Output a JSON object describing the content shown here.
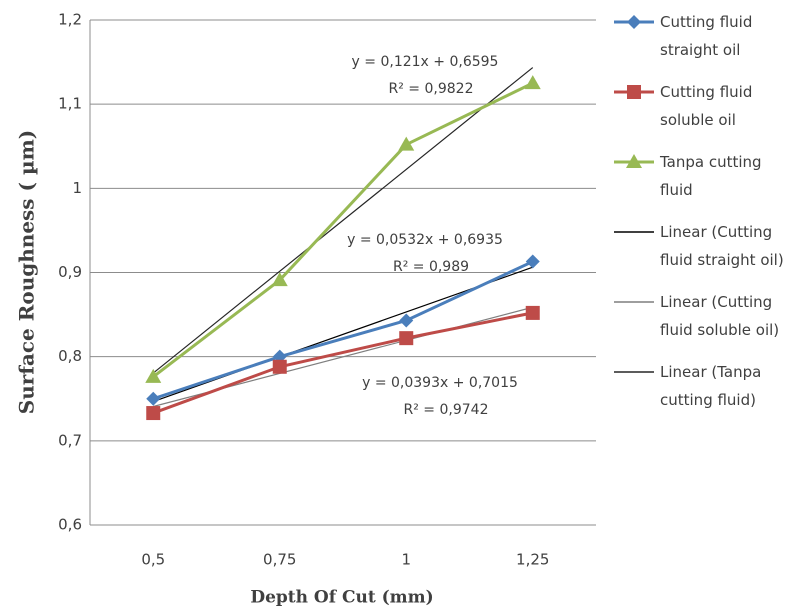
{
  "chart_data": {
    "type": "line",
    "x_label": "Depth Of Cut (mm)",
    "y_label": "Surface Roughness ( µm)",
    "categories": [
      "0,5",
      "0,75",
      "1",
      "1,25"
    ],
    "ylim": [
      0.6,
      1.2
    ],
    "yticks": [
      {
        "value": 0.6,
        "label": "0,6"
      },
      {
        "value": 0.7,
        "label": "0,7"
      },
      {
        "value": 0.8,
        "label": "0,8"
      },
      {
        "value": 0.9,
        "label": "0,9"
      },
      1,
      {
        "value": 1.1,
        "label": "1,1"
      },
      {
        "value": 1.2,
        "label": "1,2"
      }
    ],
    "grid": true,
    "series": [
      {
        "name": "Cutting fluid straight oil",
        "color": "#4a7ebb",
        "marker": "diamond",
        "values": [
          0.75,
          0.8,
          0.843,
          0.913
        ]
      },
      {
        "name": "Cutting fluid soluble oil",
        "color": "#be4b48",
        "marker": "square",
        "values": [
          0.733,
          0.788,
          0.822,
          0.852
        ]
      },
      {
        "name": "Tanpa cutting fluid",
        "color": "#98b954",
        "marker": "triangle",
        "values": [
          0.776,
          0.891,
          1.052,
          1.125
        ]
      }
    ],
    "trendlines": [
      {
        "name": "Linear (Cutting fluid straight oil)",
        "color": "#000000",
        "slope": 0.0532,
        "intercept": 0.6935,
        "equation": "y = 0,0532x + 0,6935",
        "r2": 0.989,
        "r2_label": "R² = 0,989"
      },
      {
        "name": "Linear (Cutting fluid soluble oil)",
        "color": "#7f7f7f",
        "slope": 0.0393,
        "intercept": 0.7015,
        "equation": "y = 0,0393x + 0,7015",
        "r2": 0.9742,
        "r2_label": "R² = 0,9742"
      },
      {
        "name": "Linear (Tanpa cutting fluid)",
        "color": "#262626",
        "slope": 0.121,
        "intercept": 0.6595,
        "equation": "y = 0,121x + 0,6595",
        "r2": 0.9822,
        "r2_label": "R² = 0,9822"
      }
    ]
  }
}
